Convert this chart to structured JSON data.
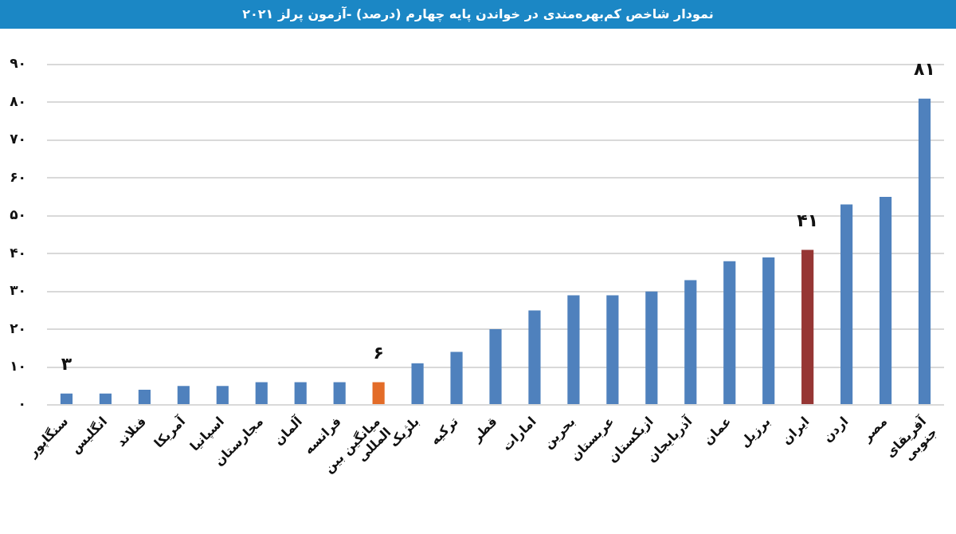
{
  "chart_data": {
    "type": "bar",
    "title": "نمودار شاخص کم‌بهره‌مندی در خواندن پایه چهارم (درصد) -آزمون پرلز ۲۰۲۱",
    "categories": [
      "سنگاپور",
      "انگلیس",
      "فنلاند",
      "آمریکا",
      "اسپانیا",
      "مجارستان",
      "آلمان",
      "فرانسه",
      "میانگین بین المللی",
      "بلژیک",
      "ترکیه",
      "قطر",
      "امارات",
      "بحرین",
      "عربستان",
      "ازبکستان",
      "آذربایجان",
      "عمان",
      "برزیل",
      "ایران",
      "اردن",
      "مصر",
      "آفریقای جنوبی"
    ],
    "values": [
      3,
      3,
      4,
      5,
      5,
      6,
      6,
      6,
      6,
      11,
      14,
      20,
      25,
      29,
      29,
      30,
      33,
      38,
      39,
      41,
      53,
      55,
      81
    ],
    "colors": [
      "#4f81bd",
      "#4f81bd",
      "#4f81bd",
      "#4f81bd",
      "#4f81bd",
      "#4f81bd",
      "#4f81bd",
      "#4f81bd",
      "#e36c28",
      "#4f81bd",
      "#4f81bd",
      "#4f81bd",
      "#4f81bd",
      "#4f81bd",
      "#4f81bd",
      "#4f81bd",
      "#4f81bd",
      "#4f81bd",
      "#4f81bd",
      "#963634",
      "#4f81bd",
      "#4f81bd",
      "#4f81bd"
    ],
    "value_labels": [
      "۳",
      null,
      null,
      null,
      null,
      null,
      null,
      null,
      "۶",
      null,
      null,
      null,
      null,
      null,
      null,
      null,
      null,
      null,
      null,
      "۴۱",
      null,
      null,
      "۸۱"
    ],
    "ylim": [
      0,
      90
    ],
    "yticks": [
      {
        "value": 0,
        "label": "۰"
      },
      {
        "value": 10,
        "label": "۱۰"
      },
      {
        "value": 20,
        "label": "۲۰"
      },
      {
        "value": 30,
        "label": "۳۰"
      },
      {
        "value": 40,
        "label": "۴۰"
      },
      {
        "value": 50,
        "label": "۵۰"
      },
      {
        "value": 60,
        "label": "۶۰"
      },
      {
        "value": 70,
        "label": "۷۰"
      },
      {
        "value": 80,
        "label": "۸۰"
      },
      {
        "value": 90,
        "label": "۹۰"
      }
    ],
    "grid": "y"
  }
}
